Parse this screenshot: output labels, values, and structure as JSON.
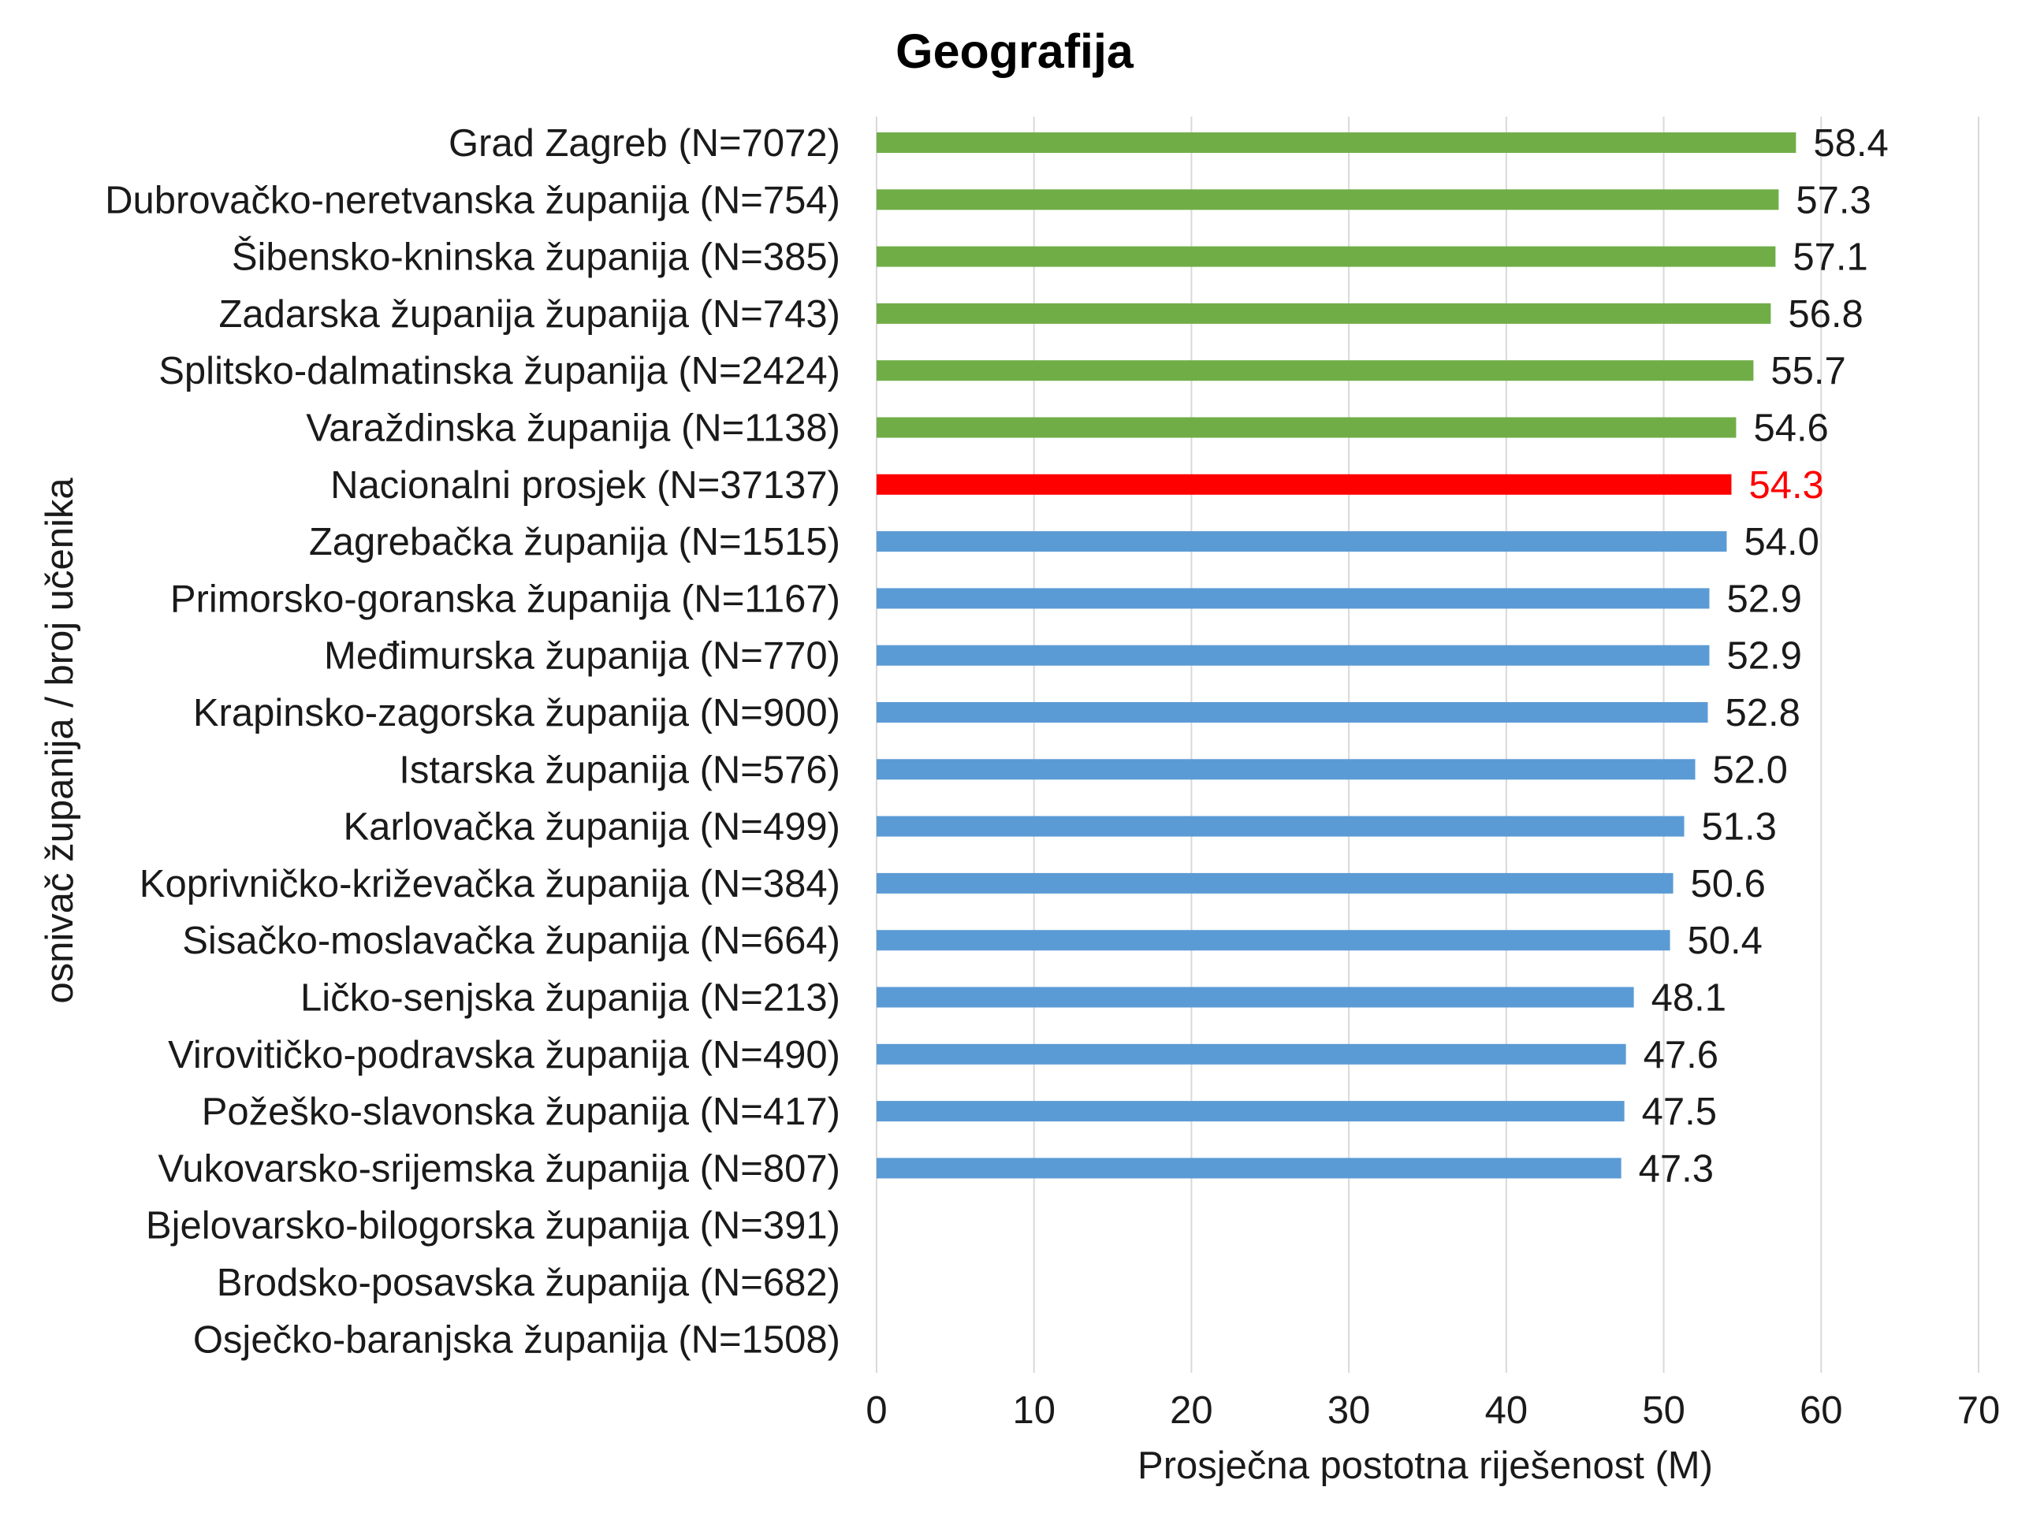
{
  "colors": {
    "top": "#70AD47",
    "national": "#FF0000",
    "other": "#5B9BD5",
    "grid": "#D9D9D9",
    "text": "#1a1a1a"
  },
  "chart_data": {
    "type": "bar",
    "orientation": "horizontal",
    "title": "Geografija",
    "xlabel": "Prosječna postotna riješenost (M)",
    "ylabel": "osnivač županija / broj učenika",
    "xlim": [
      0,
      70
    ],
    "xticks": [
      0,
      10,
      20,
      30,
      40,
      50,
      60,
      70
    ],
    "grid": "vertical",
    "categories": [
      "Grad Zagreb (N=7072)",
      "Dubrovačko-neretvanska županija (N=754)",
      "Šibensko-kninska županija (N=385)",
      "Zadarska županija županija (N=743)",
      "Splitsko-dalmatinska županija (N=2424)",
      "Varaždinska županija (N=1138)",
      "Nacionalni prosjek (N=37137)",
      "Zagrebačka županija (N=1515)",
      "Primorsko-goranska županija (N=1167)",
      "Međimurska županija (N=770)",
      "Krapinsko-zagorska županija (N=900)",
      "Istarska županija (N=576)",
      "Karlovačka županija (N=499)",
      "Koprivničko-križevačka županija (N=384)",
      "Sisačko-moslavačka županija (N=664)",
      "Ličko-senjska županija (N=213)",
      "Virovitičko-podravska županija (N=490)",
      "Požeško-slavonska županija (N=417)",
      "Vukovarsko-srijemska županija (N=807)",
      "Bjelovarsko-bilogorska županija (N=391)",
      "Brodsko-posavska županija (N=682)",
      "Osječko-baranjska županija (N=1508)"
    ],
    "values": [
      58.4,
      57.3,
      57.1,
      56.8,
      55.7,
      54.6,
      54.3,
      54.0,
      52.9,
      52.9,
      52.8,
      52.0,
      51.3,
      50.6,
      50.4,
      48.1,
      47.6,
      47.5,
      47.3,
      null,
      null,
      null
    ],
    "value_labels": [
      "58.4",
      "57.3",
      "57.1",
      "56.8",
      "55.7",
      "54.6",
      "54.3",
      "54.0",
      "52.9",
      "52.9",
      "52.8",
      "52.0",
      "51.3",
      "50.6",
      "50.4",
      "48.1",
      "47.6",
      "47.5",
      "47.3",
      "",
      "",
      ""
    ],
    "groups": [
      "top",
      "top",
      "top",
      "top",
      "top",
      "top",
      "national",
      "other",
      "other",
      "other",
      "other",
      "other",
      "other",
      "other",
      "other",
      "other",
      "other",
      "other",
      "other",
      "other",
      "other",
      "other"
    ]
  }
}
